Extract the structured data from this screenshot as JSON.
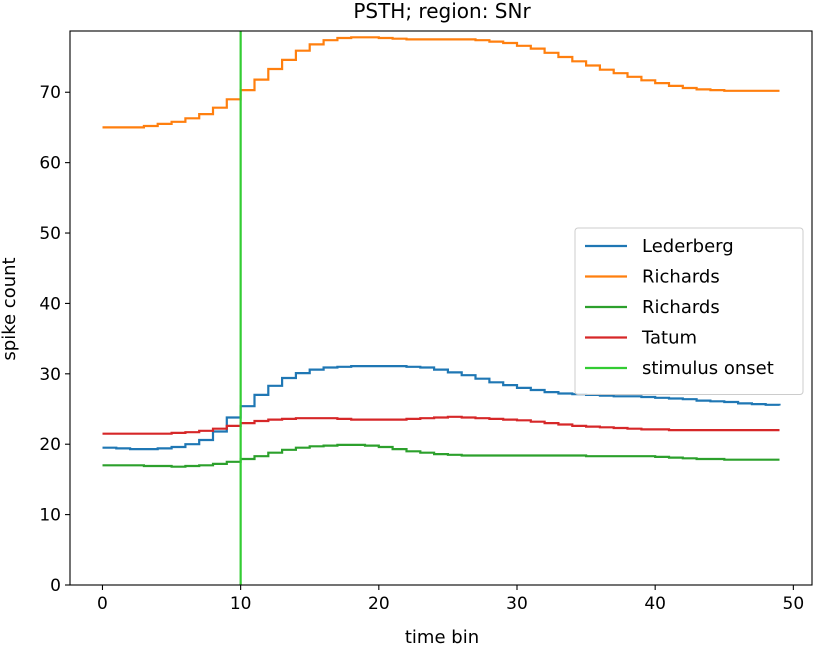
{
  "chart_data": {
    "type": "line",
    "title": "PSTH; region: SNr",
    "xlabel": "time bin",
    "ylabel": "spike count",
    "xlim": [
      -2.35,
      51.35
    ],
    "ylim": [
      0,
      78.7
    ],
    "xticks": [
      0,
      10,
      20,
      30,
      40,
      50
    ],
    "yticks": [
      0,
      10,
      20,
      30,
      40,
      50,
      60,
      70
    ],
    "grid": false,
    "legend": "center-right",
    "drawstyle": "steps-post",
    "x": [
      0,
      1,
      2,
      3,
      4,
      5,
      6,
      7,
      8,
      9,
      10,
      11,
      12,
      13,
      14,
      15,
      16,
      17,
      18,
      19,
      20,
      21,
      22,
      23,
      24,
      25,
      26,
      27,
      28,
      29,
      30,
      31,
      32,
      33,
      34,
      35,
      36,
      37,
      38,
      39,
      40,
      41,
      42,
      43,
      44,
      45,
      46,
      47,
      48,
      49
    ],
    "series": [
      {
        "name": "Lederberg",
        "color": "#1f77b4",
        "values": [
          19.5,
          19.4,
          19.3,
          19.3,
          19.4,
          19.6,
          20.0,
          20.6,
          21.8,
          23.8,
          25.4,
          27.0,
          28.3,
          29.4,
          30.1,
          30.6,
          30.9,
          31.0,
          31.1,
          31.1,
          31.1,
          31.1,
          31.0,
          30.9,
          30.6,
          30.2,
          29.8,
          29.3,
          28.8,
          28.4,
          28.0,
          27.7,
          27.4,
          27.2,
          27.1,
          27.0,
          26.9,
          26.8,
          26.8,
          26.7,
          26.6,
          26.5,
          26.4,
          26.2,
          26.1,
          26.0,
          25.8,
          25.7,
          25.6,
          25.5
        ]
      },
      {
        "name": "Richards",
        "color": "#ff7f0e",
        "values": [
          65.0,
          65.0,
          65.0,
          65.2,
          65.5,
          65.8,
          66.3,
          66.9,
          67.8,
          69.0,
          70.3,
          71.8,
          73.3,
          74.6,
          75.9,
          76.8,
          77.4,
          77.7,
          77.8,
          77.8,
          77.7,
          77.6,
          77.5,
          77.5,
          77.5,
          77.5,
          77.5,
          77.4,
          77.2,
          77.0,
          76.6,
          76.2,
          75.6,
          75.0,
          74.4,
          73.8,
          73.2,
          72.7,
          72.2,
          71.7,
          71.3,
          70.9,
          70.6,
          70.4,
          70.3,
          70.2,
          70.2,
          70.2,
          70.2,
          70.2
        ]
      },
      {
        "name": "Richards",
        "color": "#2ca02c",
        "values": [
          17.0,
          17.0,
          17.0,
          16.9,
          16.9,
          16.8,
          16.9,
          17.0,
          17.2,
          17.5,
          17.9,
          18.3,
          18.8,
          19.2,
          19.5,
          19.7,
          19.8,
          19.9,
          19.9,
          19.8,
          19.6,
          19.3,
          19.0,
          18.8,
          18.6,
          18.5,
          18.4,
          18.4,
          18.4,
          18.4,
          18.4,
          18.4,
          18.4,
          18.4,
          18.4,
          18.3,
          18.3,
          18.3,
          18.3,
          18.3,
          18.2,
          18.1,
          18.0,
          17.9,
          17.9,
          17.8,
          17.8,
          17.8,
          17.8,
          17.8
        ]
      },
      {
        "name": "Tatum",
        "color": "#d62728",
        "values": [
          21.5,
          21.5,
          21.5,
          21.5,
          21.5,
          21.6,
          21.7,
          21.9,
          22.2,
          22.6,
          23.0,
          23.3,
          23.5,
          23.6,
          23.7,
          23.7,
          23.7,
          23.6,
          23.5,
          23.5,
          23.5,
          23.5,
          23.6,
          23.7,
          23.8,
          23.9,
          23.8,
          23.7,
          23.6,
          23.5,
          23.4,
          23.2,
          23.0,
          22.8,
          22.6,
          22.5,
          22.4,
          22.3,
          22.2,
          22.1,
          22.1,
          22.0,
          22.0,
          22.0,
          22.0,
          22.0,
          22.0,
          22.0,
          22.0,
          22.0
        ]
      }
    ],
    "vline": {
      "name": "stimulus onset",
      "x": 10,
      "color": "#33cc33"
    }
  }
}
